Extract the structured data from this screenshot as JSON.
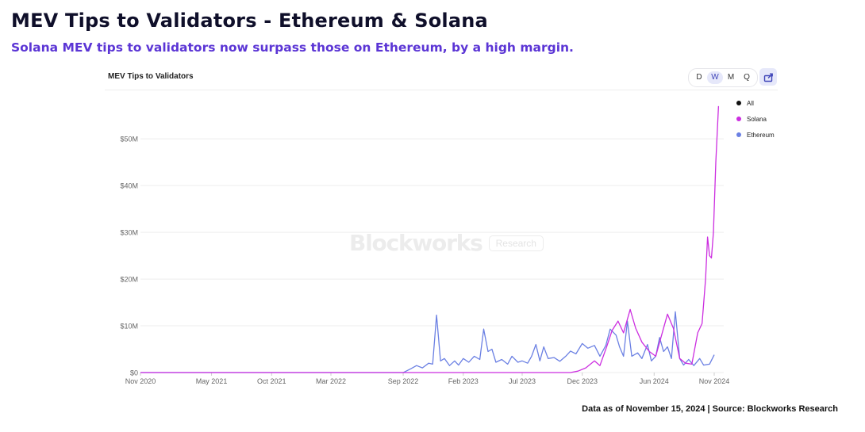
{
  "header": {
    "title": "MEV Tips to Validators - Ethereum & Solana",
    "subtitle": "Solana MEV tips to validators now surpass those on Ethereum, by a high margin."
  },
  "panel": {
    "title": "MEV Tips to Validators",
    "intervals": [
      "D",
      "W",
      "M",
      "Q"
    ],
    "active_interval": "W",
    "export_icon": "export-icon"
  },
  "watermark": {
    "word": "Blockworks",
    "badge": "Research"
  },
  "footer": {
    "source": "Data as of November 15, 2024 | Source: Blockworks Research"
  },
  "colors": {
    "solana": "#cc2ee0",
    "ethereum": "#6b80e3",
    "all": "#111111",
    "gridline": "#eeeeee",
    "axis_text": "#666666"
  },
  "chart_data": {
    "type": "line",
    "title": "MEV Tips to Validators",
    "x_range": [
      "2020-11-01",
      "2024-11-15"
    ],
    "ylim": [
      0,
      58
    ],
    "y_unit": "M",
    "y_ticks": [
      "$0",
      "$10M",
      "$20M",
      "$30M",
      "$40M",
      "$50M"
    ],
    "y_tick_values": [
      0,
      10,
      20,
      30,
      40,
      50
    ],
    "x_ticks": [
      "Nov 2020",
      "May 2021",
      "Oct 2021",
      "Mar 2022",
      "Sep 2022",
      "Feb 2023",
      "Jul 2023",
      "Dec 2023",
      "Jun 2024",
      "Nov 2024"
    ],
    "x_tick_dates": [
      "2020-11-01",
      "2021-05-01",
      "2021-10-01",
      "2022-03-01",
      "2022-09-01",
      "2023-02-01",
      "2023-07-01",
      "2023-12-01",
      "2024-06-01",
      "2024-11-01"
    ],
    "legend": [
      "All",
      "Solana",
      "Ethereum"
    ],
    "legend_placement": "right",
    "grid": true,
    "series": [
      {
        "name": "Ethereum",
        "points": [
          [
            "2020-11-01",
            0
          ],
          [
            "2022-09-01",
            0
          ],
          [
            "2022-09-20",
            0.8
          ],
          [
            "2022-10-05",
            1.5
          ],
          [
            "2022-10-20",
            1.0
          ],
          [
            "2022-11-05",
            2.0
          ],
          [
            "2022-11-15",
            1.8
          ],
          [
            "2022-11-25",
            12.3
          ],
          [
            "2022-12-05",
            2.5
          ],
          [
            "2022-12-15",
            3.0
          ],
          [
            "2022-12-28",
            1.5
          ],
          [
            "2023-01-10",
            2.5
          ],
          [
            "2023-01-20",
            1.6
          ],
          [
            "2023-02-01",
            3.0
          ],
          [
            "2023-02-15",
            2.2
          ],
          [
            "2023-03-01",
            3.5
          ],
          [
            "2023-03-15",
            2.8
          ],
          [
            "2023-03-25",
            9.3
          ],
          [
            "2023-04-05",
            4.5
          ],
          [
            "2023-04-15",
            5.0
          ],
          [
            "2023-04-25",
            2.2
          ],
          [
            "2023-05-10",
            2.8
          ],
          [
            "2023-05-25",
            1.8
          ],
          [
            "2023-06-05",
            3.5
          ],
          [
            "2023-06-20",
            2.2
          ],
          [
            "2023-07-01",
            2.5
          ],
          [
            "2023-07-15",
            2.0
          ],
          [
            "2023-07-25",
            3.5
          ],
          [
            "2023-08-05",
            6.0
          ],
          [
            "2023-08-15",
            2.5
          ],
          [
            "2023-08-25",
            5.5
          ],
          [
            "2023-09-05",
            3.0
          ],
          [
            "2023-09-20",
            3.2
          ],
          [
            "2023-10-05",
            2.4
          ],
          [
            "2023-10-20",
            3.5
          ],
          [
            "2023-11-01",
            4.6
          ],
          [
            "2023-11-15",
            4.0
          ],
          [
            "2023-12-01",
            6.2
          ],
          [
            "2023-12-15",
            5.2
          ],
          [
            "2024-01-01",
            5.8
          ],
          [
            "2024-01-15",
            3.5
          ],
          [
            "2024-01-30",
            5.8
          ],
          [
            "2024-02-10",
            9.3
          ],
          [
            "2024-02-25",
            8.0
          ],
          [
            "2024-03-05",
            5.5
          ],
          [
            "2024-03-15",
            3.5
          ],
          [
            "2024-03-25",
            11.0
          ],
          [
            "2024-04-05",
            3.5
          ],
          [
            "2024-04-20",
            4.2
          ],
          [
            "2024-05-01",
            3.0
          ],
          [
            "2024-05-15",
            6.0
          ],
          [
            "2024-05-25",
            2.5
          ],
          [
            "2024-06-05",
            3.5
          ],
          [
            "2024-06-15",
            7.5
          ],
          [
            "2024-06-25",
            4.5
          ],
          [
            "2024-07-05",
            5.5
          ],
          [
            "2024-07-15",
            3.0
          ],
          [
            "2024-07-25",
            13.0
          ],
          [
            "2024-08-05",
            3.0
          ],
          [
            "2024-08-15",
            1.6
          ],
          [
            "2024-08-28",
            2.8
          ],
          [
            "2024-09-10",
            1.5
          ],
          [
            "2024-09-25",
            3.0
          ],
          [
            "2024-10-05",
            1.6
          ],
          [
            "2024-10-20",
            1.8
          ],
          [
            "2024-11-01",
            3.8
          ]
        ]
      },
      {
        "name": "Solana",
        "points": [
          [
            "2020-11-01",
            0
          ],
          [
            "2023-11-01",
            0
          ],
          [
            "2023-11-20",
            0.3
          ],
          [
            "2023-12-10",
            1.0
          ],
          [
            "2024-01-01",
            2.5
          ],
          [
            "2024-01-15",
            1.5
          ],
          [
            "2024-02-01",
            5.5
          ],
          [
            "2024-02-15",
            9.0
          ],
          [
            "2024-03-01",
            11.0
          ],
          [
            "2024-03-15",
            8.5
          ],
          [
            "2024-04-01",
            13.5
          ],
          [
            "2024-04-15",
            9.5
          ],
          [
            "2024-05-01",
            6.5
          ],
          [
            "2024-05-20",
            4.5
          ],
          [
            "2024-06-05",
            3.5
          ],
          [
            "2024-06-20",
            8.0
          ],
          [
            "2024-07-05",
            12.5
          ],
          [
            "2024-07-20",
            9.5
          ],
          [
            "2024-08-05",
            3.0
          ],
          [
            "2024-08-20",
            2.0
          ],
          [
            "2024-09-05",
            1.8
          ],
          [
            "2024-09-20",
            8.5
          ],
          [
            "2024-10-01",
            10.5
          ],
          [
            "2024-10-10",
            20.0
          ],
          [
            "2024-10-15",
            29.0
          ],
          [
            "2024-10-20",
            25.0
          ],
          [
            "2024-10-25",
            24.5
          ],
          [
            "2024-10-30",
            30.0
          ],
          [
            "2024-11-05",
            45.0
          ],
          [
            "2024-11-12",
            57.0
          ]
        ]
      }
    ]
  }
}
